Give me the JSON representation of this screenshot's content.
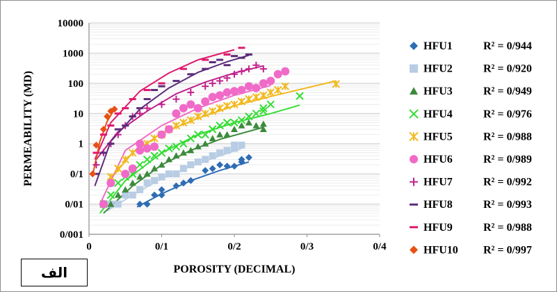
{
  "panel_label": "الف",
  "chart_data": {
    "type": "scatter",
    "xlabel": "POROSITY (DECIMAL)",
    "ylabel": "PERMEABILITY (MD)",
    "x_ticks": [
      "0",
      "0/1",
      "0/2",
      "0/3",
      "0/4"
    ],
    "y_ticks": [
      "0/001",
      "0/01",
      "0/1",
      "1",
      "10",
      "100",
      "1000",
      "10000"
    ],
    "xlim": [
      0,
      0.4
    ],
    "ylim": [
      0.001,
      10000
    ],
    "y_scale": "log",
    "grid": "horizontal",
    "legend_position": "right",
    "series": [
      {
        "name": "HFU1",
        "r2": "R² = 0/944",
        "color": "#2E6DB4",
        "marker": "diamond",
        "points": [
          [
            0.07,
            0.01
          ],
          [
            0.08,
            0.01
          ],
          [
            0.09,
            0.02
          ],
          [
            0.1,
            0.03
          ],
          [
            0.1,
            0.02
          ],
          [
            0.12,
            0.04
          ],
          [
            0.13,
            0.05
          ],
          [
            0.14,
            0.06
          ],
          [
            0.16,
            0.13
          ],
          [
            0.17,
            0.15
          ],
          [
            0.18,
            0.2
          ],
          [
            0.19,
            0.18
          ],
          [
            0.2,
            0.18
          ],
          [
            0.21,
            0.25
          ],
          [
            0.21,
            0.3
          ],
          [
            0.22,
            0.35
          ]
        ],
        "fit": [
          [
            0.066,
            0.008
          ],
          [
            0.1,
            0.022
          ],
          [
            0.14,
            0.06
          ],
          [
            0.18,
            0.13
          ],
          [
            0.22,
            0.25
          ]
        ]
      },
      {
        "name": "HFU2",
        "r2": "R² = 0/920",
        "color": "#B8CCE4",
        "marker": "square",
        "points": [
          [
            0.03,
            0.01
          ],
          [
            0.04,
            0.01
          ],
          [
            0.05,
            0.02
          ],
          [
            0.06,
            0.02
          ],
          [
            0.07,
            0.03
          ],
          [
            0.08,
            0.05
          ],
          [
            0.09,
            0.06
          ],
          [
            0.1,
            0.08
          ],
          [
            0.11,
            0.1
          ],
          [
            0.12,
            0.1
          ],
          [
            0.13,
            0.15
          ],
          [
            0.14,
            0.2
          ],
          [
            0.15,
            0.25
          ],
          [
            0.16,
            0.3
          ],
          [
            0.17,
            0.4
          ],
          [
            0.18,
            0.5
          ],
          [
            0.19,
            0.6
          ],
          [
            0.2,
            0.7
          ],
          [
            0.2,
            0.9
          ],
          [
            0.21,
            0.9
          ]
        ],
        "fit": [
          [
            0.025,
            0.006
          ],
          [
            0.06,
            0.02
          ],
          [
            0.1,
            0.07
          ],
          [
            0.14,
            0.18
          ],
          [
            0.18,
            0.4
          ],
          [
            0.21,
            0.7
          ]
        ]
      },
      {
        "name": "HFU3",
        "r2": "R² = 0/949",
        "color": "#3C8A3C",
        "marker": "triangle",
        "points": [
          [
            0.03,
            0.01
          ],
          [
            0.04,
            0.02
          ],
          [
            0.05,
            0.03
          ],
          [
            0.06,
            0.05
          ],
          [
            0.07,
            0.08
          ],
          [
            0.08,
            0.1
          ],
          [
            0.09,
            0.15
          ],
          [
            0.1,
            0.2
          ],
          [
            0.11,
            0.3
          ],
          [
            0.12,
            0.4
          ],
          [
            0.13,
            0.5
          ],
          [
            0.14,
            0.6
          ],
          [
            0.15,
            0.8
          ],
          [
            0.16,
            1
          ],
          [
            0.17,
            1.5
          ],
          [
            0.18,
            2
          ],
          [
            0.19,
            2
          ],
          [
            0.2,
            3
          ],
          [
            0.21,
            4
          ],
          [
            0.22,
            5
          ],
          [
            0.23,
            4
          ],
          [
            0.24,
            3
          ],
          [
            0.24,
            4.5
          ]
        ],
        "fit": [
          [
            0.02,
            0.005
          ],
          [
            0.06,
            0.04
          ],
          [
            0.1,
            0.2
          ],
          [
            0.14,
            0.6
          ],
          [
            0.18,
            1.4
          ],
          [
            0.24,
            3.5
          ]
        ]
      },
      {
        "name": "HFU4",
        "r2": "R² = 0/976",
        "color": "#33DD33",
        "marker": "x",
        "points": [
          [
            0.02,
            0.01
          ],
          [
            0.03,
            0.02
          ],
          [
            0.04,
            0.05
          ],
          [
            0.05,
            0.08
          ],
          [
            0.06,
            0.1
          ],
          [
            0.07,
            0.2
          ],
          [
            0.08,
            0.3
          ],
          [
            0.09,
            0.4
          ],
          [
            0.1,
            0.5
          ],
          [
            0.11,
            0.7
          ],
          [
            0.12,
            0.8
          ],
          [
            0.13,
            1
          ],
          [
            0.14,
            1.5
          ],
          [
            0.15,
            2
          ],
          [
            0.16,
            2
          ],
          [
            0.17,
            3
          ],
          [
            0.18,
            4
          ],
          [
            0.19,
            5
          ],
          [
            0.2,
            5
          ],
          [
            0.21,
            6
          ],
          [
            0.22,
            8
          ],
          [
            0.23,
            10
          ],
          [
            0.24,
            12
          ],
          [
            0.24,
            15
          ],
          [
            0.25,
            20
          ],
          [
            0.29,
            38
          ]
        ],
        "fit": [
          [
            0.015,
            0.005
          ],
          [
            0.05,
            0.06
          ],
          [
            0.1,
            0.5
          ],
          [
            0.15,
            2
          ],
          [
            0.2,
            5
          ],
          [
            0.25,
            10
          ],
          [
            0.29,
            19
          ]
        ]
      },
      {
        "name": "HFU5",
        "r2": "R² = 0/988",
        "color": "#F2B91E",
        "marker": "star",
        "points": [
          [
            0.03,
            0.08
          ],
          [
            0.04,
            0.15
          ],
          [
            0.05,
            0.3
          ],
          [
            0.06,
            0.5
          ],
          [
            0.07,
            0.8
          ],
          [
            0.08,
            1
          ],
          [
            0.09,
            1.5
          ],
          [
            0.1,
            2
          ],
          [
            0.11,
            3
          ],
          [
            0.12,
            4
          ],
          [
            0.13,
            5
          ],
          [
            0.14,
            6
          ],
          [
            0.15,
            8
          ],
          [
            0.16,
            10
          ],
          [
            0.17,
            12
          ],
          [
            0.18,
            15
          ],
          [
            0.19,
            18
          ],
          [
            0.2,
            20
          ],
          [
            0.21,
            25
          ],
          [
            0.22,
            30
          ],
          [
            0.23,
            35
          ],
          [
            0.24,
            40
          ],
          [
            0.25,
            50
          ],
          [
            0.26,
            60
          ],
          [
            0.27,
            80
          ],
          [
            0.34,
            95
          ]
        ],
        "fit": [
          [
            0.025,
            0.05
          ],
          [
            0.06,
            0.5
          ],
          [
            0.1,
            2.2
          ],
          [
            0.15,
            7
          ],
          [
            0.2,
            18
          ],
          [
            0.26,
            42
          ],
          [
            0.34,
            120
          ]
        ]
      },
      {
        "name": "HFU6",
        "r2": "R² = 0/989",
        "color": "#F06AC8",
        "marker": "circle",
        "points": [
          [
            0.02,
            0.01
          ],
          [
            0.03,
            0.05
          ],
          [
            0.05,
            0.1
          ],
          [
            0.06,
            0.15
          ],
          [
            0.07,
            0.6
          ],
          [
            0.07,
            1
          ],
          [
            0.08,
            0.7
          ],
          [
            0.09,
            0.8
          ],
          [
            0.1,
            2
          ],
          [
            0.11,
            3
          ],
          [
            0.12,
            10
          ],
          [
            0.13,
            15
          ],
          [
            0.14,
            20
          ],
          [
            0.15,
            15
          ],
          [
            0.16,
            25
          ],
          [
            0.17,
            35
          ],
          [
            0.18,
            40
          ],
          [
            0.19,
            50
          ],
          [
            0.2,
            55
          ],
          [
            0.21,
            60
          ],
          [
            0.22,
            80
          ],
          [
            0.23,
            70
          ],
          [
            0.24,
            100
          ],
          [
            0.25,
            120
          ],
          [
            0.26,
            200
          ],
          [
            0.27,
            250
          ]
        ],
        "fit": [
          [
            0.015,
            0.01
          ],
          [
            0.05,
            0.6
          ],
          [
            0.1,
            4
          ],
          [
            0.15,
            15
          ],
          [
            0.2,
            40
          ],
          [
            0.25,
            85
          ]
        ]
      },
      {
        "name": "HFU7",
        "r2": "R² = 0/992",
        "color": "#C0208C",
        "marker": "plus",
        "points": [
          [
            0.01,
            0.2
          ],
          [
            0.02,
            0.5
          ],
          [
            0.03,
            1
          ],
          [
            0.04,
            2
          ],
          [
            0.05,
            4
          ],
          [
            0.06,
            8
          ],
          [
            0.07,
            10
          ],
          [
            0.08,
            15
          ],
          [
            0.1,
            20
          ],
          [
            0.12,
            30
          ],
          [
            0.14,
            50
          ],
          [
            0.16,
            80
          ],
          [
            0.17,
            100
          ],
          [
            0.18,
            120
          ],
          [
            0.19,
            150
          ],
          [
            0.2,
            200
          ],
          [
            0.21,
            250
          ],
          [
            0.22,
            300
          ],
          [
            0.23,
            400
          ],
          [
            0.24,
            300
          ]
        ],
        "fit": [
          [
            0.01,
            0.3
          ],
          [
            0.04,
            2.5
          ],
          [
            0.08,
            12
          ],
          [
            0.12,
            45
          ],
          [
            0.16,
            110
          ],
          [
            0.2,
            220
          ],
          [
            0.24,
            380
          ]
        ]
      },
      {
        "name": "HFU8",
        "r2": "R² = 0/993",
        "color": "#5B2C7A",
        "marker": "dash",
        "points": [
          [
            0.01,
            0.1
          ],
          [
            0.02,
            0.5
          ],
          [
            0.03,
            1
          ],
          [
            0.04,
            3
          ],
          [
            0.05,
            4
          ],
          [
            0.06,
            8
          ],
          [
            0.07,
            15
          ],
          [
            0.08,
            30
          ],
          [
            0.09,
            60
          ],
          [
            0.1,
            80
          ],
          [
            0.12,
            120
          ],
          [
            0.14,
            200
          ],
          [
            0.16,
            300
          ],
          [
            0.17,
            500
          ],
          [
            0.18,
            600
          ],
          [
            0.19,
            400
          ],
          [
            0.2,
            800
          ],
          [
            0.21,
            700
          ],
          [
            0.22,
            900
          ]
        ],
        "fit": [
          [
            0.008,
            0.04
          ],
          [
            0.03,
            1.2
          ],
          [
            0.07,
            14
          ],
          [
            0.11,
            70
          ],
          [
            0.15,
            230
          ],
          [
            0.19,
            520
          ],
          [
            0.22,
            850
          ]
        ]
      },
      {
        "name": "HFU9",
        "r2": "R² = 0/988",
        "color": "#E0186C",
        "marker": "dash",
        "points": [
          [
            0.01,
            0.5
          ],
          [
            0.02,
            2
          ],
          [
            0.03,
            4
          ],
          [
            0.04,
            10
          ],
          [
            0.05,
            15
          ],
          [
            0.06,
            30
          ],
          [
            0.08,
            60
          ],
          [
            0.1,
            100
          ],
          [
            0.13,
            300
          ],
          [
            0.16,
            600
          ],
          [
            0.19,
            900
          ],
          [
            0.21,
            1500
          ]
        ],
        "fit": [
          [
            0.008,
            0.3
          ],
          [
            0.03,
            5
          ],
          [
            0.07,
            55
          ],
          [
            0.11,
            220
          ],
          [
            0.15,
            600
          ],
          [
            0.2,
            1300
          ]
        ]
      },
      {
        "name": "HFU10",
        "r2": "R² = 0/997",
        "color": "#E85014",
        "marker": "diamond",
        "points": [
          [
            0.005,
            0.1
          ],
          [
            0.01,
            0.9
          ],
          [
            0.02,
            3
          ],
          [
            0.025,
            8
          ],
          [
            0.03,
            12
          ],
          [
            0.035,
            14
          ]
        ],
        "fit": [
          [
            0.005,
            0.09
          ],
          [
            0.015,
            1.2
          ],
          [
            0.025,
            5.5
          ],
          [
            0.035,
            14
          ]
        ]
      }
    ]
  }
}
